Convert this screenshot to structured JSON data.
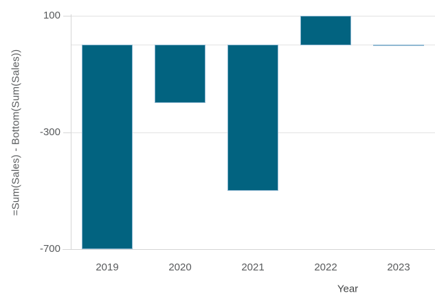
{
  "chart": {
    "y_axis_title": "=Sum(Sales) - Bottom(Sum(Sales))",
    "x_axis_title": "Year"
  },
  "chart_data": {
    "type": "bar",
    "title": "",
    "xlabel": "Year",
    "ylabel": "=Sum(Sales) - Bottom(Sum(Sales))",
    "categories": [
      "2019",
      "2020",
      "2021",
      "2022",
      "2023"
    ],
    "values": [
      -700,
      -200,
      -500,
      100,
      -5
    ],
    "yticks": [
      100,
      -300,
      -700
    ],
    "ytick_labels": [
      "100",
      "-300",
      "-700"
    ],
    "gridlines_at_values": [
      100,
      0,
      -300
    ],
    "ylim": [
      -700,
      104
    ],
    "zero_baseline": true,
    "legend": "none",
    "colors": {
      "bar_fill": "#026380",
      "bar_border": "#8fb8d2",
      "gridline": "#e2e2e2",
      "axis_line": "#d5d5d5",
      "tick_mark": "#d5d5d5",
      "tick_text": "#57595b",
      "background": "#ffffff"
    }
  }
}
